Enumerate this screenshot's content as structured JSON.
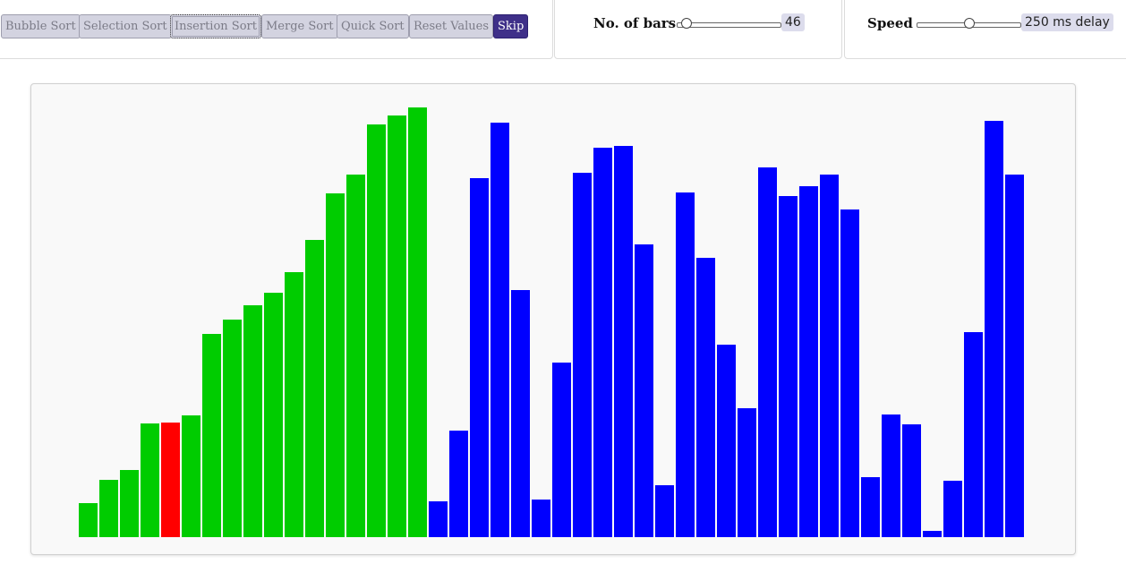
{
  "toolbar": {
    "bubble_sort": "Bubble Sort",
    "selection_sort": "Selection Sort",
    "insertion_sort": "Insertion Sort",
    "merge_sort": "Merge Sort",
    "quick_sort": "Quick Sort",
    "reset_values": "Reset Values",
    "skip": "Skip"
  },
  "bars_control": {
    "label": "No. of bars",
    "value": "46",
    "fraction": 0.05
  },
  "speed_control": {
    "label": "Speed",
    "value": "250 ms delay",
    "fraction": 0.5
  },
  "colors": {
    "sorted": "#00cc00",
    "comparing": "#ff0000",
    "unsorted": "#0000ff"
  },
  "bars": [
    {
      "value": 38,
      "state": "sorted"
    },
    {
      "value": 64,
      "state": "sorted"
    },
    {
      "value": 75,
      "state": "sorted"
    },
    {
      "value": 127,
      "state": "sorted"
    },
    {
      "value": 128,
      "state": "comparing"
    },
    {
      "value": 136,
      "state": "sorted"
    },
    {
      "value": 227,
      "state": "sorted"
    },
    {
      "value": 243,
      "state": "sorted"
    },
    {
      "value": 259,
      "state": "sorted"
    },
    {
      "value": 273,
      "state": "sorted"
    },
    {
      "value": 296,
      "state": "sorted"
    },
    {
      "value": 332,
      "state": "sorted"
    },
    {
      "value": 384,
      "state": "sorted"
    },
    {
      "value": 405,
      "state": "sorted"
    },
    {
      "value": 461,
      "state": "sorted"
    },
    {
      "value": 471,
      "state": "sorted"
    },
    {
      "value": 480,
      "state": "sorted"
    },
    {
      "value": 40,
      "state": "unsorted"
    },
    {
      "value": 119,
      "state": "unsorted"
    },
    {
      "value": 401,
      "state": "unsorted"
    },
    {
      "value": 463,
      "state": "unsorted"
    },
    {
      "value": 276,
      "state": "unsorted"
    },
    {
      "value": 42,
      "state": "unsorted"
    },
    {
      "value": 195,
      "state": "unsorted"
    },
    {
      "value": 407,
      "state": "unsorted"
    },
    {
      "value": 435,
      "state": "unsorted"
    },
    {
      "value": 437,
      "state": "unsorted"
    },
    {
      "value": 327,
      "state": "unsorted"
    },
    {
      "value": 58,
      "state": "unsorted"
    },
    {
      "value": 385,
      "state": "unsorted"
    },
    {
      "value": 312,
      "state": "unsorted"
    },
    {
      "value": 215,
      "state": "unsorted"
    },
    {
      "value": 144,
      "state": "unsorted"
    },
    {
      "value": 413,
      "state": "unsorted"
    },
    {
      "value": 381,
      "state": "unsorted"
    },
    {
      "value": 392,
      "state": "unsorted"
    },
    {
      "value": 405,
      "state": "unsorted"
    },
    {
      "value": 366,
      "state": "unsorted"
    },
    {
      "value": 67,
      "state": "unsorted"
    },
    {
      "value": 137,
      "state": "unsorted"
    },
    {
      "value": 126,
      "state": "unsorted"
    },
    {
      "value": 7,
      "state": "unsorted"
    },
    {
      "value": 63,
      "state": "unsorted"
    },
    {
      "value": 229,
      "state": "unsorted"
    },
    {
      "value": 465,
      "state": "unsorted"
    },
    {
      "value": 405,
      "state": "unsorted"
    }
  ]
}
